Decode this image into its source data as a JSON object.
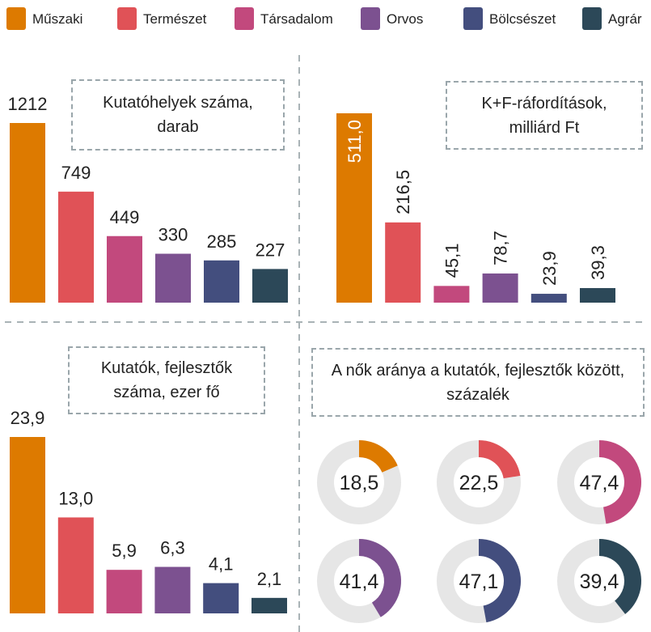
{
  "legend": [
    {
      "name": "Műszaki",
      "color": "#dd7a00"
    },
    {
      "name": "Természet",
      "color": "#e05257"
    },
    {
      "name": "Társadalom",
      "color": "#c2497d"
    },
    {
      "name": "Orvos",
      "color": "#7c5190"
    },
    {
      "name": "Bölcsészet",
      "color": "#434e7e"
    },
    {
      "name": "Agrár",
      "color": "#2c4858"
    }
  ],
  "chart_data": [
    {
      "type": "bar",
      "title": "Kutatóhelyek száma, darab",
      "values": [
        1212,
        749,
        449,
        330,
        285,
        227
      ]
    },
    {
      "type": "bar",
      "title": "K+F-ráfordítások, milliárd Ft",
      "values": [
        511.0,
        216.5,
        45.1,
        78.7,
        23.9,
        39.3
      ],
      "value_labels": [
        "511,0",
        "216,5",
        "45,1",
        "78,7",
        "23,9",
        "39,3"
      ]
    },
    {
      "type": "bar",
      "title": "Kutatók, fejlesztők száma, ezer fő",
      "values": [
        23.9,
        13.0,
        5.9,
        6.3,
        4.1,
        2.1
      ],
      "value_labels": [
        "23,9",
        "13,0",
        "5,9",
        "6,3",
        "4,1",
        "2,1"
      ]
    },
    {
      "type": "donut",
      "title": "A nők aránya a kutatók, fejlesztők között, százalék",
      "values": [
        18.5,
        22.5,
        47.4,
        41.4,
        47.1,
        39.4
      ],
      "value_labels": [
        "18,5",
        "22,5",
        "47,4",
        "41,4",
        "47,1",
        "39,4"
      ]
    }
  ]
}
